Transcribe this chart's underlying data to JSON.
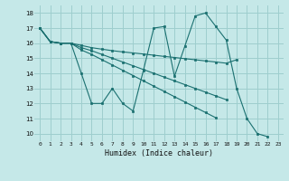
{
  "xlabel": "Humidex (Indice chaleur)",
  "background_color": "#c5e8e8",
  "grid_color": "#9ecece",
  "line_color": "#1a7070",
  "xlim": [
    -0.5,
    23.5
  ],
  "ylim": [
    9.5,
    18.5
  ],
  "xticks": [
    0,
    1,
    2,
    3,
    4,
    5,
    6,
    7,
    8,
    9,
    10,
    11,
    12,
    13,
    14,
    15,
    16,
    17,
    18,
    19,
    20,
    21,
    22,
    23
  ],
  "yticks": [
    10,
    11,
    12,
    13,
    14,
    15,
    16,
    17,
    18
  ],
  "series": [
    [
      17.0,
      16.1,
      16.0,
      16.0,
      14.0,
      12.0,
      12.0,
      13.0,
      12.0,
      11.5,
      14.2,
      17.0,
      17.1,
      13.8,
      15.8,
      17.8,
      18.0,
      17.1,
      16.2,
      13.0,
      11.0,
      10.0,
      9.8,
      null
    ],
    [
      17.0,
      16.1,
      16.0,
      16.0,
      15.85,
      15.7,
      15.6,
      15.5,
      15.42,
      15.35,
      15.28,
      15.2,
      15.12,
      15.05,
      14.97,
      14.9,
      14.82,
      14.75,
      14.67,
      14.9,
      null,
      null,
      null,
      null
    ],
    [
      17.0,
      16.1,
      16.0,
      16.0,
      15.7,
      15.5,
      15.25,
      15.0,
      14.75,
      14.5,
      14.25,
      14.0,
      13.75,
      13.5,
      13.25,
      13.0,
      12.75,
      12.5,
      12.25,
      null,
      null,
      null,
      null,
      null
    ],
    [
      17.0,
      16.1,
      16.0,
      16.0,
      15.55,
      15.25,
      14.9,
      14.55,
      14.2,
      13.85,
      13.5,
      13.15,
      12.8,
      12.45,
      12.1,
      11.75,
      11.4,
      11.05,
      null,
      null,
      null,
      null,
      null,
      null
    ]
  ]
}
